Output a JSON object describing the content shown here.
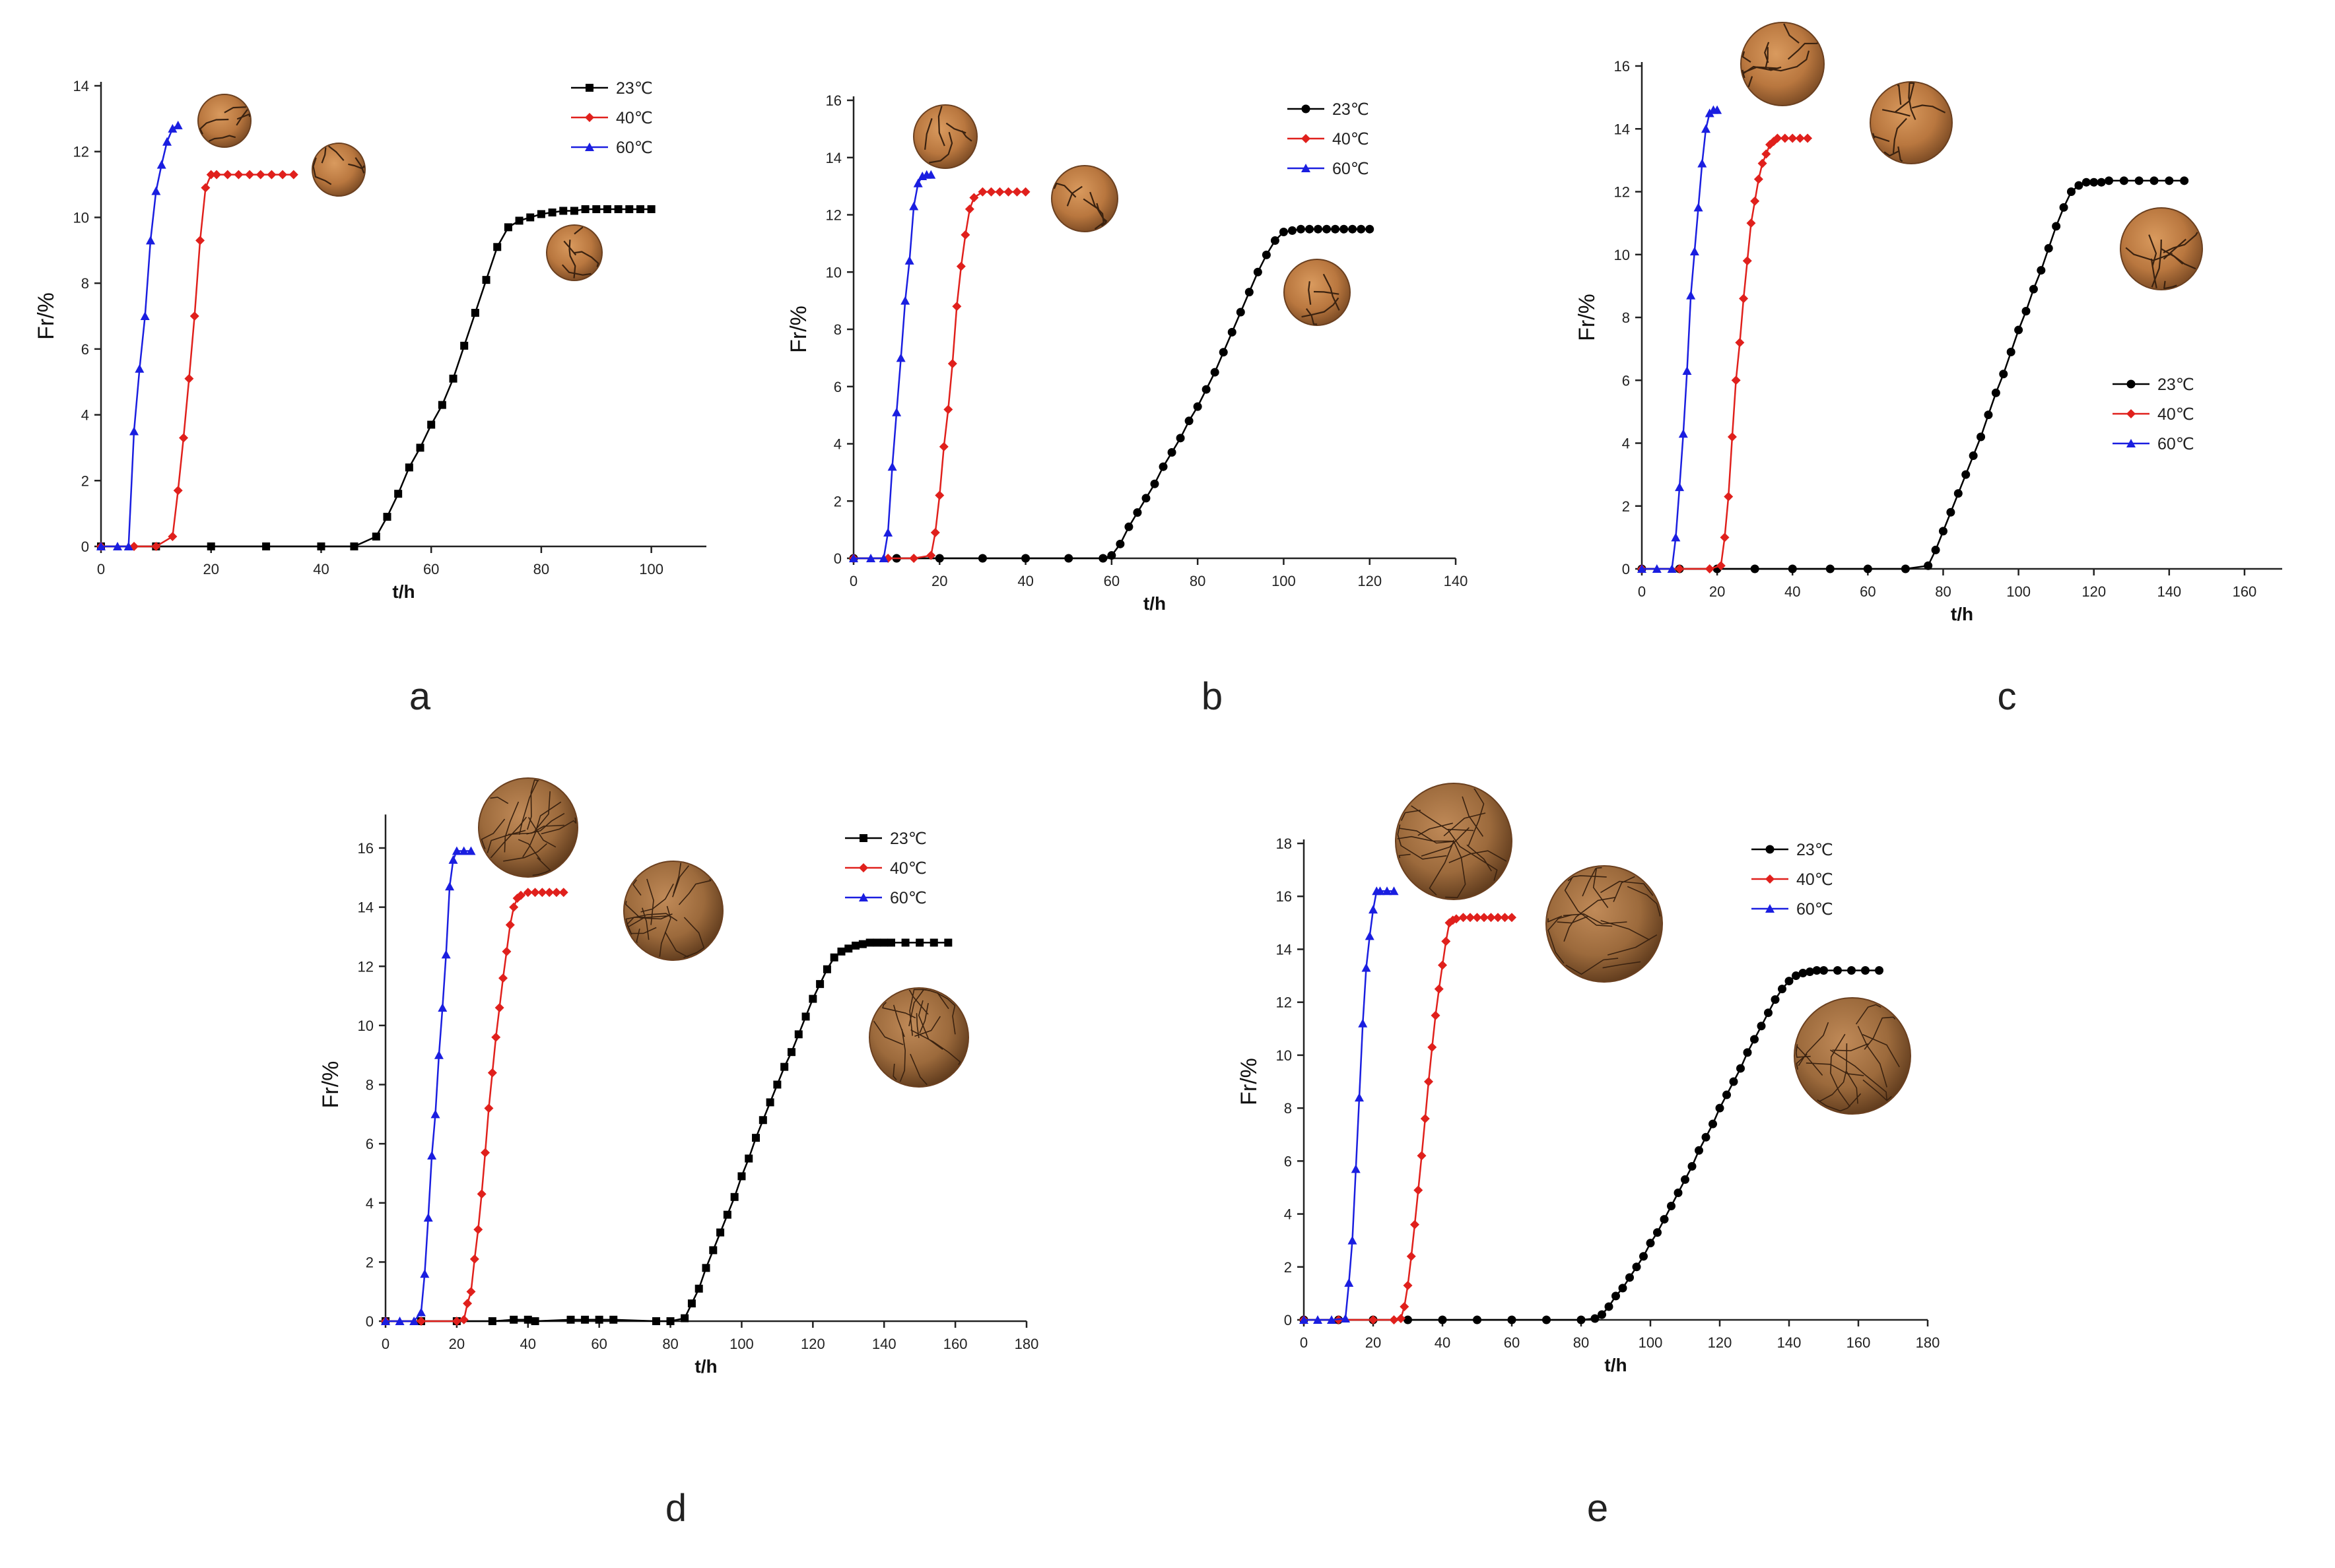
{
  "colors": {
    "c23": "#000000",
    "c40": "#e0201c",
    "c60": "#1a1ee0",
    "axis": "#222222"
  },
  "chart_data": [
    {
      "type": "line",
      "title": "a",
      "xlabel": "t/h",
      "ylabel": "Fr/%",
      "xlim": [
        0,
        110
      ],
      "ylim": [
        0,
        14
      ],
      "xticks": [
        0,
        20,
        40,
        60,
        80,
        100
      ],
      "yticks": [
        0,
        2,
        4,
        6,
        8,
        10,
        12,
        14
      ],
      "legend": "top-right",
      "series": [
        {
          "name": "23℃",
          "marker": "square",
          "color": "#000000",
          "x": [
            0,
            10,
            20,
            30,
            40,
            46,
            50,
            52,
            54,
            56,
            58,
            60,
            62,
            64,
            66,
            68,
            70,
            72,
            74,
            76,
            78,
            80,
            82,
            84,
            86,
            88,
            90,
            92,
            94,
            96,
            98,
            100
          ],
          "y": [
            0,
            0,
            0,
            0,
            0,
            0,
            0.3,
            0.9,
            1.6,
            2.4,
            3.0,
            3.7,
            4.3,
            5.1,
            6.1,
            7.1,
            8.1,
            9.1,
            9.7,
            9.9,
            10.0,
            10.1,
            10.15,
            10.2,
            10.2,
            10.25,
            10.25,
            10.25,
            10.25,
            10.25,
            10.25,
            10.25
          ]
        },
        {
          "name": "40℃",
          "marker": "diamond",
          "color": "#e0201c",
          "x": [
            0,
            6,
            10,
            13,
            14,
            15,
            16,
            17,
            18,
            19,
            20,
            21,
            23,
            25,
            27,
            29,
            31,
            33,
            35
          ],
          "y": [
            0,
            0,
            0,
            0.3,
            1.7,
            3.3,
            5.1,
            7.0,
            9.3,
            10.9,
            11.3,
            11.3,
            11.3,
            11.3,
            11.3,
            11.3,
            11.3,
            11.3,
            11.3
          ]
        },
        {
          "name": "60℃",
          "marker": "triangle",
          "color": "#1a1ee0",
          "x": [
            0,
            3,
            5,
            6,
            7,
            8,
            9,
            10,
            11,
            12,
            13,
            14
          ],
          "y": [
            0,
            0,
            0,
            3.5,
            5.4,
            7.0,
            9.3,
            10.8,
            11.6,
            12.3,
            12.7,
            12.8
          ]
        }
      ]
    },
    {
      "type": "line",
      "title": "b",
      "xlabel": "t/h",
      "ylabel": "Fr/%",
      "xlim": [
        0,
        140
      ],
      "ylim": [
        0,
        16
      ],
      "xticks": [
        0,
        20,
        40,
        60,
        80,
        100,
        120,
        140
      ],
      "yticks": [
        0,
        2,
        4,
        6,
        8,
        10,
        12,
        14,
        16
      ],
      "legend": "top-right",
      "series": [
        {
          "name": "23℃",
          "marker": "circle",
          "color": "#000000",
          "x": [
            0,
            10,
            20,
            30,
            40,
            50,
            58,
            60,
            62,
            64,
            66,
            68,
            70,
            72,
            74,
            76,
            78,
            80,
            82,
            84,
            86,
            88,
            90,
            92,
            94,
            96,
            98,
            100,
            102,
            104,
            106,
            108,
            110,
            112,
            114,
            116,
            118,
            120
          ],
          "y": [
            0,
            0,
            0,
            0,
            0,
            0,
            0,
            0.1,
            0.5,
            1.1,
            1.6,
            2.1,
            2.6,
            3.2,
            3.7,
            4.2,
            4.8,
            5.3,
            5.9,
            6.5,
            7.2,
            7.9,
            8.6,
            9.3,
            10.0,
            10.6,
            11.1,
            11.4,
            11.45,
            11.5,
            11.5,
            11.5,
            11.5,
            11.5,
            11.5,
            11.5,
            11.5,
            11.5
          ]
        },
        {
          "name": "40℃",
          "marker": "diamond",
          "color": "#e0201c",
          "x": [
            0,
            8,
            14,
            18,
            19,
            20,
            21,
            22,
            23,
            24,
            25,
            26,
            27,
            28,
            30,
            32,
            34,
            36,
            38,
            40
          ],
          "y": [
            0,
            0,
            0,
            0.1,
            0.9,
            2.2,
            3.9,
            5.2,
            6.8,
            8.8,
            10.2,
            11.3,
            12.2,
            12.6,
            12.8,
            12.8,
            12.8,
            12.8,
            12.8,
            12.8
          ]
        },
        {
          "name": "60℃",
          "marker": "triangle",
          "color": "#1a1ee0",
          "x": [
            0,
            4,
            7,
            8,
            9,
            10,
            11,
            12,
            13,
            14,
            15,
            16,
            17,
            18
          ],
          "y": [
            0,
            0,
            0,
            0.9,
            3.2,
            5.1,
            7.0,
            9.0,
            10.4,
            12.3,
            13.1,
            13.35,
            13.4,
            13.4
          ]
        }
      ]
    },
    {
      "type": "line",
      "title": "c",
      "xlabel": "t/h",
      "ylabel": "Fr/%",
      "xlim": [
        0,
        170
      ],
      "ylim": [
        0,
        16
      ],
      "xticks": [
        0,
        20,
        40,
        60,
        80,
        100,
        120,
        140,
        160
      ],
      "yticks": [
        0,
        2,
        4,
        6,
        8,
        10,
        12,
        14,
        16
      ],
      "legend": "right",
      "series": [
        {
          "name": "23℃",
          "marker": "circle",
          "color": "#000000",
          "x": [
            0,
            10,
            20,
            30,
            40,
            50,
            60,
            70,
            76,
            78,
            80,
            82,
            84,
            86,
            88,
            90,
            92,
            94,
            96,
            98,
            100,
            102,
            104,
            106,
            108,
            110,
            112,
            114,
            116,
            118,
            120,
            122,
            124,
            128,
            132,
            136,
            140,
            144
          ],
          "y": [
            0,
            0,
            0,
            0,
            0,
            0,
            0,
            0,
            0.1,
            0.6,
            1.2,
            1.8,
            2.4,
            3.0,
            3.6,
            4.2,
            4.9,
            5.6,
            6.2,
            6.9,
            7.6,
            8.2,
            8.9,
            9.5,
            10.2,
            10.9,
            11.5,
            12.0,
            12.2,
            12.3,
            12.3,
            12.3,
            12.35,
            12.35,
            12.35,
            12.35,
            12.35,
            12.35
          ]
        },
        {
          "name": "40℃",
          "marker": "diamond",
          "color": "#e0201c",
          "x": [
            0,
            10,
            18,
            21,
            22,
            23,
            24,
            25,
            26,
            27,
            28,
            29,
            30,
            31,
            32,
            33,
            34,
            35,
            36,
            38,
            40,
            42,
            44
          ],
          "y": [
            0,
            0,
            0,
            0.1,
            1.0,
            2.3,
            4.2,
            6.0,
            7.2,
            8.6,
            9.8,
            11.0,
            11.7,
            12.4,
            12.9,
            13.2,
            13.5,
            13.6,
            13.7,
            13.7,
            13.7,
            13.7,
            13.7
          ]
        },
        {
          "name": "60℃",
          "marker": "triangle",
          "color": "#1a1ee0",
          "x": [
            0,
            4,
            8,
            9,
            10,
            11,
            12,
            13,
            14,
            15,
            16,
            17,
            18,
            19,
            20
          ],
          "y": [
            0,
            0,
            0,
            1.0,
            2.6,
            4.3,
            6.3,
            8.7,
            10.1,
            11.5,
            12.9,
            14.0,
            14.5,
            14.6,
            14.6
          ]
        }
      ]
    },
    {
      "type": "line",
      "title": "d",
      "xlabel": "t/h",
      "ylabel": "Fr/%",
      "xlim": [
        0,
        180
      ],
      "ylim": [
        0,
        17
      ],
      "xticks": [
        0,
        20,
        40,
        60,
        80,
        100,
        120,
        140,
        160,
        180
      ],
      "yticks": [
        0,
        2,
        4,
        6,
        8,
        10,
        12,
        14,
        16
      ],
      "legend": "top-right",
      "series": [
        {
          "name": "23℃",
          "marker": "square",
          "color": "#000000",
          "x": [
            0,
            10,
            20,
            30,
            36,
            40,
            42,
            52,
            56,
            60,
            64,
            76,
            80,
            84,
            86,
            88,
            90,
            92,
            94,
            96,
            98,
            100,
            102,
            104,
            106,
            108,
            110,
            112,
            114,
            116,
            118,
            120,
            122,
            124,
            126,
            128,
            130,
            132,
            134,
            136,
            138,
            140,
            142,
            146,
            150,
            154,
            158
          ],
          "y": [
            0,
            0,
            0,
            0,
            0.05,
            0.05,
            0,
            0.05,
            0.05,
            0.05,
            0.05,
            0,
            0,
            0.1,
            0.6,
            1.1,
            1.8,
            2.4,
            3.0,
            3.6,
            4.2,
            4.9,
            5.5,
            6.2,
            6.8,
            7.4,
            8.0,
            8.6,
            9.1,
            9.7,
            10.3,
            10.9,
            11.4,
            11.9,
            12.3,
            12.5,
            12.6,
            12.7,
            12.75,
            12.8,
            12.8,
            12.8,
            12.8,
            12.8,
            12.8,
            12.8,
            12.8
          ]
        },
        {
          "name": "40℃",
          "marker": "diamond",
          "color": "#e0201c",
          "x": [
            0,
            10,
            20,
            22,
            23,
            24,
            25,
            26,
            27,
            28,
            29,
            30,
            31,
            32,
            33,
            34,
            35,
            36,
            37,
            38,
            40,
            42,
            44,
            46,
            48,
            50
          ],
          "y": [
            0,
            0,
            0,
            0.05,
            0.6,
            1.0,
            2.1,
            3.1,
            4.3,
            5.7,
            7.2,
            8.4,
            9.6,
            10.6,
            11.6,
            12.5,
            13.4,
            14.0,
            14.3,
            14.4,
            14.5,
            14.5,
            14.5,
            14.5,
            14.5,
            14.5
          ]
        },
        {
          "name": "60℃",
          "marker": "triangle",
          "color": "#1a1ee0",
          "x": [
            0,
            4,
            8,
            10,
            11,
            12,
            13,
            14,
            15,
            16,
            17,
            18,
            19,
            20,
            22,
            24
          ],
          "y": [
            0,
            0,
            0,
            0.3,
            1.6,
            3.5,
            5.6,
            7.0,
            9.0,
            10.6,
            12.4,
            14.7,
            15.6,
            15.9,
            15.9,
            15.9
          ]
        }
      ]
    },
    {
      "type": "line",
      "title": "e",
      "xlabel": "t/h",
      "ylabel": "Fr/%",
      "xlim": [
        0,
        180
      ],
      "ylim": [
        0,
        18
      ],
      "xticks": [
        0,
        20,
        40,
        60,
        80,
        100,
        120,
        140,
        160,
        180
      ],
      "yticks": [
        0,
        2,
        4,
        6,
        8,
        10,
        12,
        14,
        16,
        18
      ],
      "legend": "top-right",
      "series": [
        {
          "name": "23℃",
          "marker": "circle",
          "color": "#000000",
          "x": [
            0,
            10,
            20,
            30,
            40,
            50,
            60,
            70,
            80,
            84,
            86,
            88,
            90,
            92,
            94,
            96,
            98,
            100,
            102,
            104,
            106,
            108,
            110,
            112,
            114,
            116,
            118,
            120,
            122,
            124,
            126,
            128,
            130,
            132,
            134,
            136,
            138,
            140,
            142,
            144,
            146,
            148,
            150,
            154,
            158,
            162,
            166
          ],
          "y": [
            0,
            0,
            0,
            0,
            0,
            0,
            0,
            0,
            0,
            0.05,
            0.2,
            0.5,
            0.9,
            1.2,
            1.6,
            2.0,
            2.4,
            2.9,
            3.3,
            3.8,
            4.3,
            4.8,
            5.3,
            5.8,
            6.4,
            6.9,
            7.4,
            8.0,
            8.5,
            9.0,
            9.5,
            10.1,
            10.6,
            11.1,
            11.6,
            12.1,
            12.5,
            12.8,
            13.0,
            13.1,
            13.15,
            13.2,
            13.2,
            13.2,
            13.2,
            13.2,
            13.2
          ]
        },
        {
          "name": "40℃",
          "marker": "diamond",
          "color": "#e0201c",
          "x": [
            0,
            10,
            20,
            26,
            28,
            29,
            30,
            31,
            32,
            33,
            34,
            35,
            36,
            37,
            38,
            39,
            40,
            41,
            42,
            43,
            44,
            46,
            48,
            50,
            52,
            54,
            56,
            58,
            60
          ],
          "y": [
            0,
            0,
            0,
            0,
            0.05,
            0.5,
            1.3,
            2.4,
            3.6,
            4.9,
            6.2,
            7.6,
            9.0,
            10.3,
            11.5,
            12.5,
            13.4,
            14.3,
            15.0,
            15.1,
            15.15,
            15.2,
            15.2,
            15.2,
            15.2,
            15.2,
            15.2,
            15.2,
            15.2
          ]
        },
        {
          "name": "60℃",
          "marker": "triangle",
          "color": "#1a1ee0",
          "x": [
            0,
            4,
            8,
            12,
            13,
            14,
            15,
            16,
            17,
            18,
            19,
            20,
            21,
            22,
            24,
            26
          ],
          "y": [
            0,
            0,
            0,
            0.05,
            1.4,
            3.0,
            5.7,
            8.4,
            11.2,
            13.3,
            14.5,
            15.5,
            16.2,
            16.2,
            16.2,
            16.2
          ]
        }
      ]
    }
  ]
}
